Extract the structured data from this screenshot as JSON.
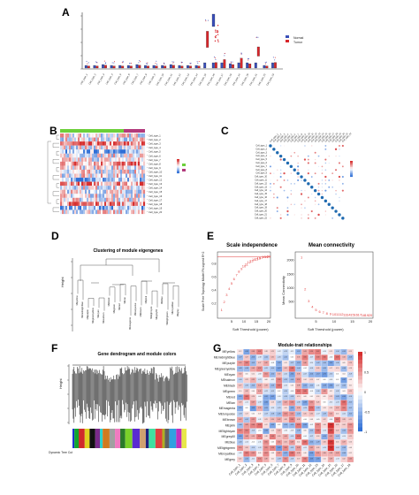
{
  "panels": {
    "A": {
      "label": "A",
      "legend": [
        "Normal",
        "Tumor"
      ],
      "colors": {
        "normal": "#3a4fb8",
        "tumor": "#d8262b"
      }
    },
    "B": {
      "label": "B"
    },
    "C": {
      "label": "C"
    },
    "D": {
      "label": "D",
      "title": "Clustering of module eigengenes",
      "ylabel": "Height"
    },
    "E": {
      "label": "E",
      "left_title": "Scale independence",
      "left_xlabel": "Soft Threshold (power)",
      "left_ylabel": "Scale Free Topology Model Fit,signed R^2",
      "right_title": "Mean connectivity",
      "right_xlabel": "Soft Threshold (power)",
      "right_ylabel": "Mean Connectivity",
      "xticks": [
        "5",
        "10",
        "15",
        "20"
      ],
      "left_yticks": [
        "0.2",
        "0.4",
        "0.6",
        "0.8"
      ],
      "right_yticks": [
        "500",
        "1000",
        "1500",
        "2000"
      ]
    },
    "F": {
      "label": "F",
      "title": "Gene dendrogram and module colors",
      "ylabel": "Height",
      "color_label": "Dynamic Tree Cut"
    },
    "G": {
      "label": "G",
      "title": "Module-trait relationships",
      "scale": [
        "1",
        "0.5",
        "0",
        "-0.5",
        "-1"
      ],
      "modules": [
        "MEyellow",
        "MEmidnightblue",
        "MEpurple",
        "MEgreenyellow",
        "MEcyan",
        "MEsalmon",
        "MEblack",
        "MEgreen",
        "MEred",
        "MEtan",
        "MEmagenta",
        "MEturquoise",
        "MEbrown",
        "MEpink",
        "MElightcyan",
        "MEgrey60",
        "MEblue",
        "MElightgreen",
        "MEroyalblue",
        "MEgrey"
      ]
    }
  },
  "chart_data": {
    "type": "scatter",
    "title": "Scale independence",
    "xlabel": "Soft Threshold (power)",
    "ylabel": "Scale Free Topology Model Fit,signed R^2",
    "x": [
      1,
      2,
      3,
      4,
      5,
      6,
      7,
      8,
      9,
      10,
      11,
      12,
      13,
      14,
      15,
      16,
      17,
      18,
      19,
      20
    ],
    "y": [
      0.1,
      0.22,
      0.33,
      0.42,
      0.5,
      0.57,
      0.63,
      0.68,
      0.72,
      0.76,
      0.79,
      0.82,
      0.84,
      0.86,
      0.87,
      0.88,
      0.89,
      0.9,
      0.9,
      0.91
    ],
    "xlim": [
      0,
      20
    ],
    "ylim": [
      0,
      0.95
    ],
    "hline": 0.9
  },
  "connectivity": {
    "x": [
      1,
      2,
      3,
      4,
      5,
      6,
      7,
      8,
      9,
      10,
      11,
      12,
      13,
      14,
      15,
      16,
      17,
      18,
      19,
      20
    ],
    "y": [
      2100,
      950,
      520,
      320,
      210,
      150,
      110,
      85,
      68,
      55,
      46,
      40,
      35,
      31,
      28,
      26,
      24,
      22,
      21,
      20
    ],
    "ylim": [
      0,
      2200
    ]
  }
}
